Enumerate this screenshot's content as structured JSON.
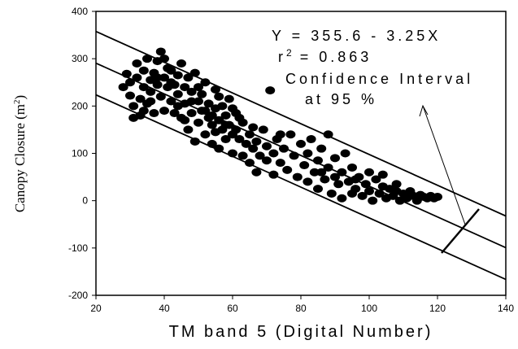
{
  "chart_data": {
    "type": "scatter",
    "title": "",
    "xlabel": "TM band 5 (Digital Number)",
    "ylabel": "Canopy Closure (m²)",
    "xlim": [
      20,
      140
    ],
    "ylim": [
      -200,
      400
    ],
    "x_ticks": [
      "20",
      "40",
      "60",
      "80",
      "100",
      "120",
      "140"
    ],
    "y_ticks": [
      "-200",
      "-100",
      "0",
      "100",
      "200",
      "300",
      "400"
    ],
    "grid": false,
    "legend": "none",
    "annotations": {
      "equation": "Y = 355.6 - 3.25X",
      "r2_prefix": "r",
      "r2_exp": "2",
      "r2_value": "= 0.863",
      "ci_line1": "Confidence Interval",
      "ci_line2": "at 95 %"
    },
    "regression": {
      "intercept": 355.6,
      "slope": -3.25,
      "ci_offset": 67,
      "x_range": [
        20,
        140
      ]
    },
    "series": [
      {
        "points": [
          [
            28,
            240
          ],
          [
            29,
            268
          ],
          [
            30,
            250
          ],
          [
            30,
            222
          ],
          [
            31,
            200
          ],
          [
            31,
            175
          ],
          [
            32,
            260
          ],
          [
            32,
            290
          ],
          [
            33,
            180
          ],
          [
            33,
            215
          ],
          [
            34,
            240
          ],
          [
            34,
            275
          ],
          [
            35,
            300
          ],
          [
            35,
            205
          ],
          [
            36,
            255
          ],
          [
            36,
            230
          ],
          [
            37,
            270
          ],
          [
            37,
            185
          ],
          [
            38,
            295
          ],
          [
            38,
            245
          ],
          [
            39,
            315
          ],
          [
            39,
            220
          ],
          [
            40,
            190
          ],
          [
            40,
            260
          ],
          [
            40,
            300
          ],
          [
            41,
            280
          ],
          [
            41,
            240
          ],
          [
            42,
            210
          ],
          [
            42,
            275
          ],
          [
            43,
            185
          ],
          [
            43,
            245
          ],
          [
            44,
            265
          ],
          [
            44,
            225
          ],
          [
            45,
            290
          ],
          [
            45,
            175
          ],
          [
            46,
            240
          ],
          [
            46,
            205
          ],
          [
            47,
            260
          ],
          [
            47,
            150
          ],
          [
            48,
            230
          ],
          [
            48,
            185
          ],
          [
            49,
            270
          ],
          [
            49,
            125
          ],
          [
            50,
            210
          ],
          [
            50,
            240
          ],
          [
            50,
            165
          ],
          [
            51,
            190
          ],
          [
            51,
            225
          ],
          [
            52,
            140
          ],
          [
            52,
            250
          ],
          [
            53,
            175
          ],
          [
            53,
            205
          ],
          [
            54,
            160
          ],
          [
            54,
            120
          ],
          [
            55,
            195
          ],
          [
            55,
            235
          ],
          [
            55,
            145
          ],
          [
            56,
            170
          ],
          [
            56,
            110
          ],
          [
            57,
            200
          ],
          [
            57,
            150
          ],
          [
            58,
            180
          ],
          [
            58,
            130
          ],
          [
            59,
            215
          ],
          [
            59,
            160
          ],
          [
            60,
            140
          ],
          [
            60,
            100
          ],
          [
            61,
            185
          ],
          [
            61,
            150
          ],
          [
            62,
            130
          ],
          [
            63,
            165
          ],
          [
            63,
            95
          ],
          [
            64,
            120
          ],
          [
            65,
            80
          ],
          [
            65,
            140
          ],
          [
            66,
            110
          ],
          [
            67,
            60
          ],
          [
            67,
            125
          ],
          [
            68,
            95
          ],
          [
            69,
            150
          ],
          [
            70,
            85
          ],
          [
            70,
            115
          ],
          [
            71,
            233
          ],
          [
            72,
            100
          ],
          [
            72,
            55
          ],
          [
            73,
            130
          ],
          [
            74,
            80
          ],
          [
            75,
            110
          ],
          [
            76,
            65
          ],
          [
            77,
            140
          ],
          [
            78,
            95
          ],
          [
            79,
            50
          ],
          [
            80,
            120
          ],
          [
            81,
            75
          ],
          [
            82,
            40
          ],
          [
            82,
            100
          ],
          [
            83,
            130
          ],
          [
            84,
            60
          ],
          [
            85,
            85
          ],
          [
            85,
            25
          ],
          [
            86,
            110
          ],
          [
            87,
            45
          ],
          [
            88,
            140
          ],
          [
            88,
            70
          ],
          [
            89,
            15
          ],
          [
            90,
            90
          ],
          [
            91,
            35
          ],
          [
            92,
            60
          ],
          [
            92,
            5
          ],
          [
            93,
            100
          ],
          [
            94,
            40
          ],
          [
            95,
            70
          ],
          [
            95,
            15
          ],
          [
            96,
            25
          ],
          [
            97,
            50
          ],
          [
            98,
            10
          ],
          [
            99,
            35
          ],
          [
            100,
            60
          ],
          [
            100,
            20
          ],
          [
            101,
            0
          ],
          [
            102,
            45
          ],
          [
            103,
            15
          ],
          [
            104,
            30
          ],
          [
            105,
            5
          ],
          [
            106,
            25
          ],
          [
            107,
            10
          ],
          [
            108,
            35
          ],
          [
            109,
            0
          ],
          [
            110,
            15
          ],
          [
            111,
            5
          ],
          [
            112,
            20
          ],
          [
            113,
            10
          ],
          [
            114,
            0
          ],
          [
            115,
            12
          ],
          [
            116,
            8
          ],
          [
            117,
            5
          ],
          [
            118,
            10
          ],
          [
            119,
            5
          ],
          [
            120,
            8
          ],
          [
            54,
            180
          ],
          [
            56,
            220
          ],
          [
            58,
            160
          ],
          [
            52,
            190
          ],
          [
            48,
            210
          ],
          [
            44,
            200
          ],
          [
            46,
            170
          ],
          [
            62,
            175
          ],
          [
            66,
            155
          ],
          [
            74,
            140
          ],
          [
            86,
            60
          ],
          [
            90,
            50
          ],
          [
            96,
            45
          ],
          [
            104,
            55
          ],
          [
            108,
            20
          ],
          [
            112,
            15
          ],
          [
            38,
            260
          ],
          [
            36,
            210
          ],
          [
            34,
            190
          ],
          [
            42,
            250
          ],
          [
            60,
            195
          ]
        ]
      }
    ]
  }
}
